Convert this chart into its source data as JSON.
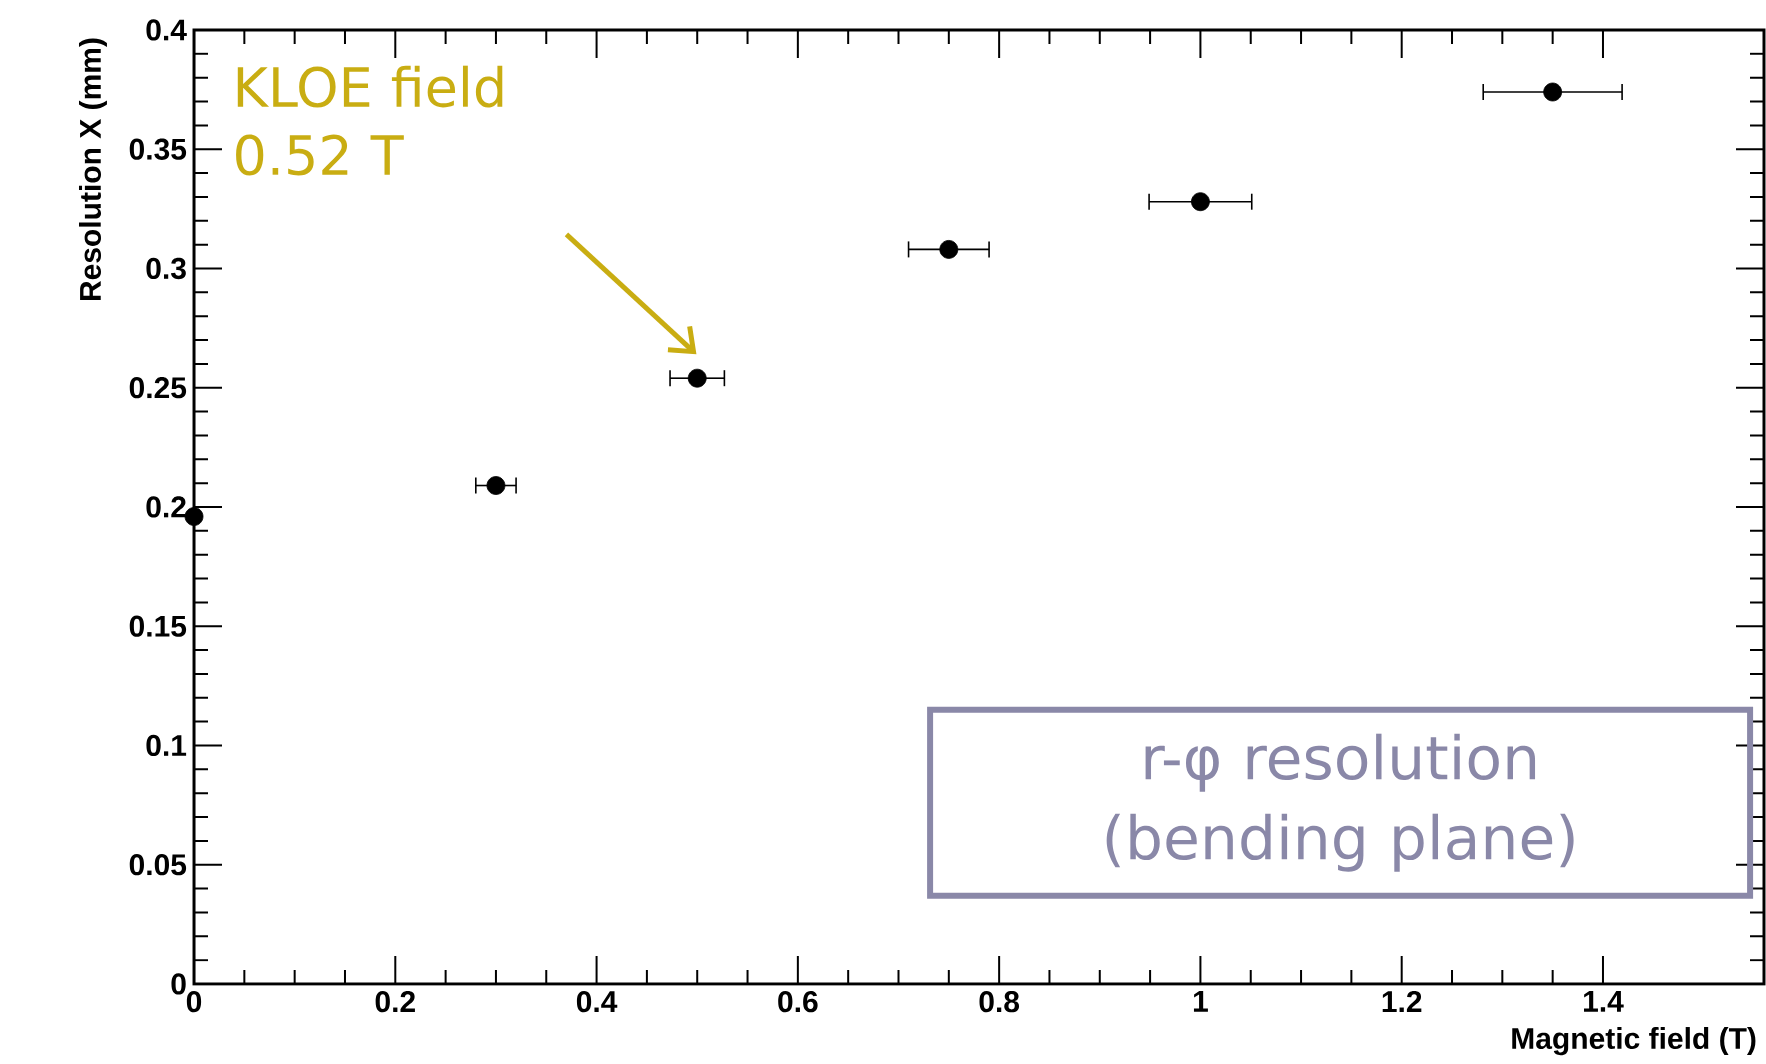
{
  "chart_data": {
    "type": "scatter",
    "xlabel": "Magnetic field (T)",
    "ylabel": "Resolution X (mm)",
    "x": [
      0,
      0.3,
      0.5,
      0.75,
      1.0,
      1.35
    ],
    "values": [
      0.196,
      0.209,
      0.254,
      0.308,
      0.328,
      0.374
    ],
    "xerrors": [
      null,
      0.02,
      0.027,
      0.04,
      0.051,
      0.069
    ],
    "color": "#000000",
    "marker": "circle",
    "xlim": [
      0,
      1.56
    ],
    "ylim": [
      0,
      0.4
    ],
    "xticks": [
      0,
      0.2,
      0.4,
      0.6,
      0.8,
      1,
      1.2,
      1.4
    ],
    "yticks": [
      0,
      0.05,
      0.1,
      0.15,
      0.2,
      0.25,
      0.3,
      0.35,
      0.4
    ],
    "annotations": [
      "KLOE field 0.52 T",
      "r-φ resolution (bending plane)"
    ]
  }
}
